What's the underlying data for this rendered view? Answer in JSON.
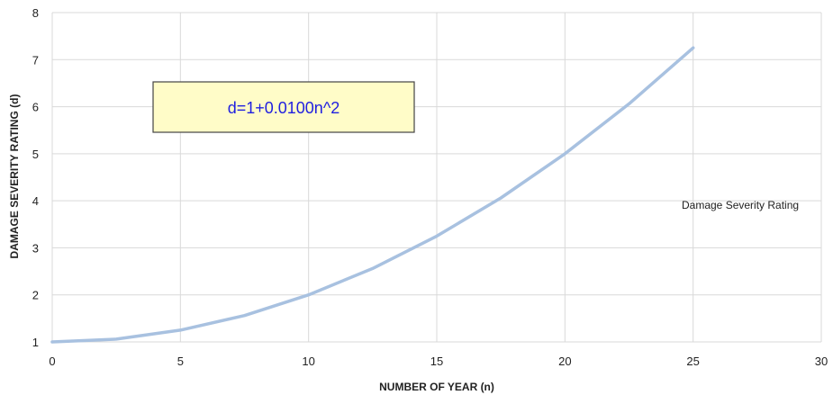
{
  "chart_data": {
    "type": "line",
    "xlabel": "NUMBER OF YEAR (n)",
    "ylabel": "DAMAGE SEVERITY RATING (d)",
    "xlim": [
      0,
      30
    ],
    "ylim": [
      1,
      8
    ],
    "x_ticks": [
      0,
      5,
      10,
      15,
      20,
      25,
      30
    ],
    "y_ticks": [
      1,
      2,
      3,
      4,
      5,
      6,
      7,
      8
    ],
    "grid": true,
    "legend_position": "right",
    "annotation": "d=1+0.0100n^2",
    "series": [
      {
        "name": "Damage Severity Rating",
        "color": "#a8c1e0",
        "x": [
          0,
          2.5,
          5,
          7.5,
          10,
          12.5,
          15,
          17.5,
          20,
          22.5,
          25
        ],
        "y": [
          1,
          1.06,
          1.25,
          1.56,
          2,
          2.56,
          3.25,
          4.06,
          5,
          6.06,
          7.25
        ]
      }
    ]
  }
}
